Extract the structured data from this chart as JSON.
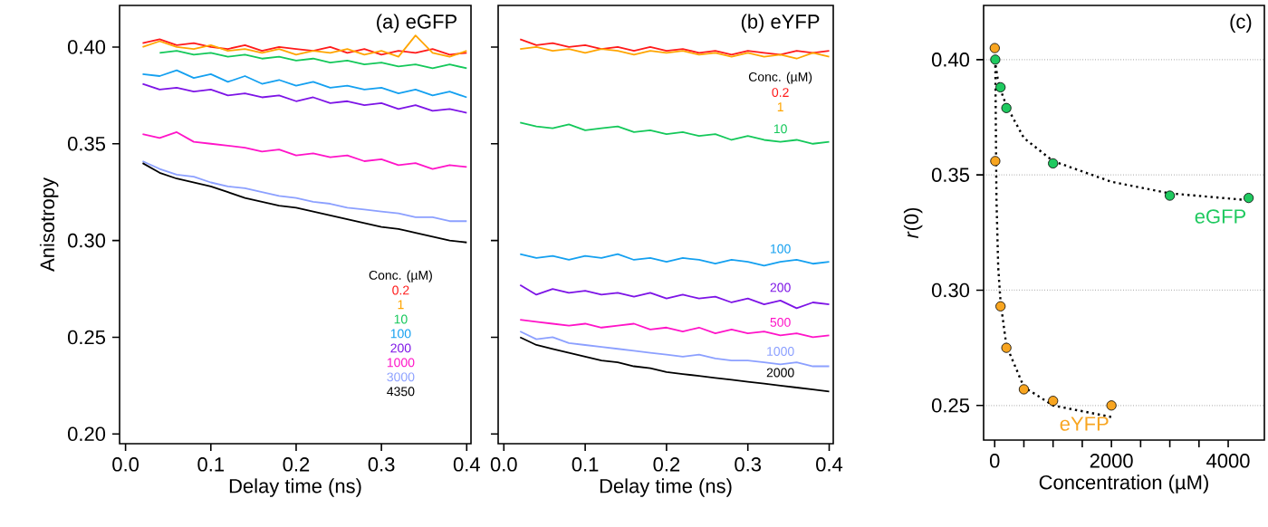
{
  "chart_data": [
    {
      "type": "line",
      "title": "(a) eGFP",
      "xlabel": "Delay time (ns)",
      "ylabel": "Anisotropy",
      "legend_title": "Conc. (µM)",
      "legend": "bottom right",
      "xlim": [
        -0.007,
        0.405
      ],
      "ylim": [
        0.195,
        0.4215
      ],
      "xticks": [
        {
          "value": 0,
          "label": "0.0"
        },
        0.1,
        0.2,
        0.3,
        0.4
      ],
      "yticks": [
        {
          "value": 0.2,
          "label": "0.20"
        },
        0.25,
        {
          "value": 0.3,
          "label": "0.30"
        },
        0.35,
        {
          "value": 0.4,
          "label": "0.40"
        }
      ],
      "x": [
        0.02,
        0.04,
        0.06,
        0.08,
        0.1,
        0.12,
        0.14,
        0.16,
        0.18,
        0.2,
        0.22,
        0.24,
        0.26,
        0.28,
        0.3,
        0.32,
        0.34,
        0.36,
        0.38,
        0.4
      ],
      "series": [
        {
          "name": "0.2",
          "color": "#ff1a1a",
          "values": [
            0.402,
            0.404,
            0.401,
            0.402,
            0.4,
            0.399,
            0.401,
            0.398,
            0.4,
            0.399,
            0.398,
            0.4,
            0.397,
            0.399,
            0.396,
            0.398,
            0.397,
            0.399,
            0.396,
            0.397
          ]
        },
        {
          "name": "1",
          "color": "#ffa500",
          "values": [
            0.4,
            0.403,
            0.4,
            0.399,
            0.401,
            0.398,
            0.399,
            0.397,
            0.399,
            0.396,
            0.398,
            0.397,
            0.399,
            0.396,
            0.398,
            0.395,
            0.406,
            0.397,
            0.395,
            0.398
          ]
        },
        {
          "name": "10",
          "color": "#14c85a",
          "values": [
            null,
            0.397,
            0.398,
            0.396,
            0.397,
            0.395,
            0.396,
            0.394,
            0.395,
            0.393,
            0.394,
            0.392,
            0.393,
            0.391,
            0.392,
            0.39,
            0.391,
            0.389,
            0.391,
            0.389
          ]
        },
        {
          "name": "100",
          "color": "#14a0f0",
          "values": [
            0.386,
            0.385,
            0.388,
            0.384,
            0.386,
            0.382,
            0.385,
            0.381,
            0.383,
            0.38,
            0.382,
            0.379,
            0.38,
            0.378,
            0.379,
            0.376,
            0.378,
            0.375,
            0.377,
            0.374
          ]
        },
        {
          "name": "200",
          "color": "#7d14e6",
          "values": [
            0.381,
            0.378,
            0.379,
            0.377,
            0.378,
            0.375,
            0.376,
            0.374,
            0.375,
            0.372,
            0.374,
            0.371,
            0.372,
            0.37,
            0.371,
            0.368,
            0.37,
            0.367,
            0.368,
            0.366
          ]
        },
        {
          "name": "1000",
          "color": "#ff14c8",
          "values": [
            0.355,
            0.353,
            0.356,
            0.351,
            0.35,
            0.349,
            0.348,
            0.346,
            0.347,
            0.344,
            0.345,
            0.343,
            0.344,
            0.341,
            0.342,
            0.339,
            0.34,
            0.337,
            0.339,
            0.338
          ]
        },
        {
          "name": "3000",
          "color": "#8ca0ff",
          "values": [
            0.341,
            0.337,
            0.334,
            0.333,
            0.33,
            0.328,
            0.327,
            0.325,
            0.323,
            0.322,
            0.32,
            0.319,
            0.317,
            0.316,
            0.315,
            0.314,
            0.312,
            0.312,
            0.31,
            0.31
          ]
        },
        {
          "name": "4350",
          "color": "#000000",
          "values": [
            0.34,
            0.335,
            0.332,
            0.33,
            0.328,
            0.325,
            0.322,
            0.32,
            0.318,
            0.317,
            0.315,
            0.313,
            0.311,
            0.309,
            0.307,
            0.306,
            0.304,
            0.302,
            0.3,
            0.299
          ]
        }
      ]
    },
    {
      "type": "line",
      "title": "(b) eYFP",
      "xlabel": "Delay time (ns)",
      "legend_title": "Conc. (µM)",
      "legend": "right",
      "tick_labels": "x",
      "xlim": [
        -0.007,
        0.405
      ],
      "ylim": [
        0.195,
        0.4215
      ],
      "xticks": [
        {
          "value": 0,
          "label": "0.0"
        },
        0.1,
        0.2,
        0.3,
        0.4
      ],
      "yticks": [
        0.2,
        0.25,
        0.3,
        0.35,
        0.4
      ],
      "x": [
        0.02,
        0.04,
        0.06,
        0.08,
        0.1,
        0.12,
        0.14,
        0.16,
        0.18,
        0.2,
        0.22,
        0.24,
        0.26,
        0.28,
        0.3,
        0.32,
        0.34,
        0.36,
        0.38,
        0.4
      ],
      "series": [
        {
          "name": "0.2",
          "color": "#ff1a1a",
          "values": [
            0.404,
            0.401,
            0.402,
            0.4,
            0.401,
            0.399,
            0.4,
            0.398,
            0.4,
            0.398,
            0.399,
            0.397,
            0.398,
            0.396,
            0.398,
            0.397,
            0.396,
            0.398,
            0.397,
            0.398
          ]
        },
        {
          "name": "1",
          "color": "#ffa500",
          "values": [
            0.399,
            0.4,
            0.398,
            0.399,
            0.397,
            0.399,
            0.398,
            0.396,
            0.398,
            0.397,
            0.398,
            0.396,
            0.397,
            0.395,
            0.397,
            0.395,
            0.396,
            0.394,
            0.397,
            0.395
          ]
        },
        {
          "name": "10",
          "color": "#14c85a",
          "values": [
            0.361,
            0.359,
            0.358,
            0.36,
            0.357,
            0.358,
            0.359,
            0.356,
            0.357,
            0.355,
            0.356,
            0.354,
            0.355,
            0.352,
            0.354,
            0.352,
            0.351,
            0.352,
            0.35,
            0.351
          ]
        },
        {
          "name": "100",
          "color": "#14a0f0",
          "values": [
            0.293,
            0.291,
            0.292,
            0.29,
            0.292,
            0.291,
            0.293,
            0.29,
            0.291,
            0.289,
            0.291,
            0.29,
            0.288,
            0.29,
            0.289,
            0.287,
            0.289,
            0.29,
            0.288,
            0.289
          ]
        },
        {
          "name": "200",
          "color": "#7d14e6",
          "values": [
            0.277,
            0.272,
            0.275,
            0.273,
            0.274,
            0.272,
            0.273,
            0.271,
            0.273,
            0.27,
            0.272,
            0.27,
            0.271,
            0.268,
            0.27,
            0.267,
            0.269,
            0.265,
            0.268,
            0.267
          ]
        },
        {
          "name": "500",
          "color": "#ff14c8",
          "values": [
            0.259,
            0.258,
            0.257,
            0.256,
            0.257,
            0.255,
            0.256,
            0.257,
            0.254,
            0.255,
            0.253,
            0.255,
            0.252,
            0.254,
            0.252,
            0.253,
            0.251,
            0.252,
            0.25,
            0.251
          ]
        },
        {
          "name": "1000",
          "color": "#8ca0ff",
          "values": [
            0.253,
            0.249,
            0.25,
            0.247,
            0.246,
            0.245,
            0.244,
            0.243,
            0.242,
            0.241,
            0.24,
            0.241,
            0.239,
            0.238,
            0.238,
            0.237,
            0.236,
            0.237,
            0.235,
            0.235
          ]
        },
        {
          "name": "2000",
          "color": "#000000",
          "values": [
            0.25,
            0.246,
            0.244,
            0.242,
            0.24,
            0.238,
            0.237,
            0.235,
            0.234,
            0.232,
            0.231,
            0.23,
            0.229,
            0.228,
            0.227,
            0.226,
            0.225,
            0.224,
            0.223,
            0.222
          ]
        }
      ]
    },
    {
      "type": "scatter",
      "title": "(c)",
      "xlabel": "Concentration (µM)",
      "ylabel": "*r*(0)",
      "grid": "y",
      "xlim": [
        -190,
        4620
      ],
      "ylim": [
        0.235,
        0.4235
      ],
      "xticks": [
        0,
        {
          "value": 500,
          "label": null
        },
        {
          "value": 1000,
          "label": null
        },
        {
          "value": 1500,
          "label": null
        },
        2000,
        {
          "value": 2500,
          "label": null
        },
        {
          "value": 3000,
          "label": null
        },
        {
          "value": 3500,
          "label": null
        },
        4000
      ],
      "yticks": [
        0.25,
        {
          "value": 0.3,
          "label": "0.30"
        },
        0.35,
        {
          "value": 0.4,
          "label": "0.40"
        }
      ],
      "series": [
        {
          "type": "line",
          "color": "#000000",
          "line_style": "dotted",
          "marker": "none",
          "x": [
            0,
            50,
            100,
            200,
            500,
            1000,
            2000,
            3000,
            4350
          ],
          "values": [
            0.4,
            0.392,
            0.387,
            0.38,
            0.366,
            0.356,
            0.347,
            0.342,
            0.339
          ]
        },
        {
          "type": "line",
          "color": "#000000",
          "line_style": "dotted",
          "marker": "none",
          "x": [
            10,
            30,
            60,
            100,
            200,
            500,
            1000,
            2000
          ],
          "values": [
            0.4,
            0.34,
            0.31,
            0.295,
            0.276,
            0.258,
            0.25,
            0.245
          ]
        },
        {
          "name": "eGFP",
          "color": "#1fc95f",
          "marker": "circle",
          "x": [
            10,
            100,
            200,
            1000,
            3000,
            4350
          ],
          "values": [
            0.4,
            0.388,
            0.379,
            0.355,
            0.341,
            0.34
          ]
        },
        {
          "name": "eYFP",
          "color": "#f8a520",
          "marker": "circle",
          "x": [
            1,
            10,
            100,
            200,
            500,
            1000,
            2000
          ],
          "values": [
            0.405,
            0.356,
            0.293,
            0.275,
            0.257,
            0.252,
            0.25
          ]
        }
      ]
    }
  ]
}
